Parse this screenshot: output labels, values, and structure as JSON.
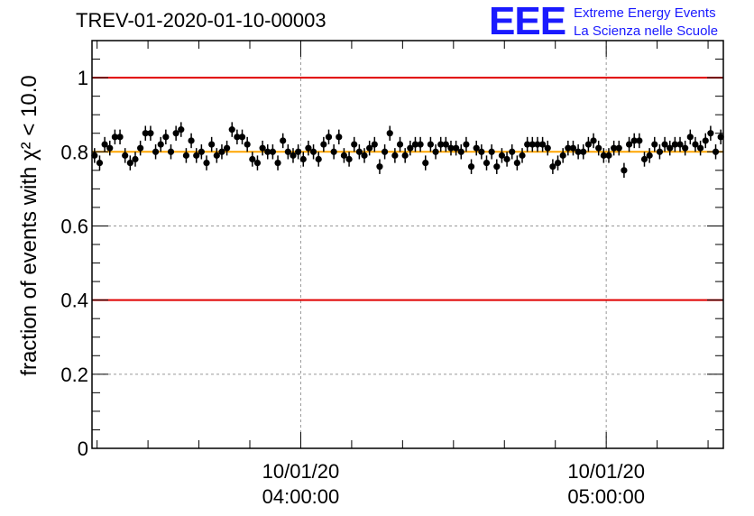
{
  "title": "TREV-01-2020-01-10-00003",
  "logo": {
    "mark": "EEE",
    "line1": "Extreme Energy Events",
    "line2": "La Scienza nelle Scuole"
  },
  "chart_data": {
    "type": "scatter",
    "title": "TREV-01-2020-01-10-00003",
    "ylabel": "fraction of events with χ² < 10.0",
    "ylim": [
      0,
      1.1
    ],
    "yticks": [
      0,
      0.2,
      0.4,
      0.6,
      0.8,
      1
    ],
    "ytick_labels": [
      "0",
      "0.2",
      "0.4",
      "0.6",
      "0.8",
      "1"
    ],
    "xlim": [
      0,
      124
    ],
    "xticks": [
      {
        "x": 41,
        "line1": "10/01/20",
        "line2": "04:00:00"
      },
      {
        "x": 101,
        "line1": "10/01/20",
        "line2": "05:00:00"
      }
    ],
    "grid": true,
    "reference_lines": [
      {
        "y": 1.0,
        "color": "#e00000"
      },
      {
        "y": 0.4,
        "color": "#e00000"
      },
      {
        "y": 0.8,
        "color": "#ffa500"
      }
    ],
    "error_bar": 0.02,
    "marker_color": "#000000",
    "values": [
      0.79,
      0.77,
      0.82,
      0.81,
      0.84,
      0.84,
      0.79,
      0.77,
      0.78,
      0.81,
      0.85,
      0.85,
      0.8,
      0.82,
      0.84,
      0.8,
      0.85,
      0.86,
      0.79,
      0.83,
      0.79,
      0.8,
      0.77,
      0.82,
      0.79,
      0.8,
      0.81,
      0.86,
      0.84,
      0.84,
      0.82,
      0.78,
      0.77,
      0.81,
      0.8,
      0.8,
      0.77,
      0.83,
      0.8,
      0.79,
      0.8,
      0.78,
      0.81,
      0.8,
      0.78,
      0.82,
      0.84,
      0.8,
      0.84,
      0.79,
      0.78,
      0.82,
      0.8,
      0.79,
      0.81,
      0.82,
      0.76,
      0.8,
      0.85,
      0.79,
      0.82,
      0.79,
      0.81,
      0.82,
      0.82,
      0.77,
      0.82,
      0.8,
      0.82,
      0.82,
      0.81,
      0.81,
      0.8,
      0.82,
      0.76,
      0.81,
      0.8,
      0.77,
      0.8,
      0.76,
      0.79,
      0.78,
      0.8,
      0.77,
      0.79,
      0.82,
      0.82,
      0.82,
      0.82,
      0.81,
      0.76,
      0.77,
      0.79,
      0.81,
      0.81,
      0.8,
      0.8,
      0.82,
      0.83,
      0.81,
      0.79,
      0.79,
      0.81,
      0.81,
      0.75,
      0.82,
      0.83,
      0.83,
      0.78,
      0.79,
      0.82,
      0.8,
      0.82,
      0.81,
      0.82,
      0.82,
      0.81,
      0.84,
      0.82,
      0.81,
      0.83,
      0.85,
      0.8,
      0.84
    ]
  }
}
